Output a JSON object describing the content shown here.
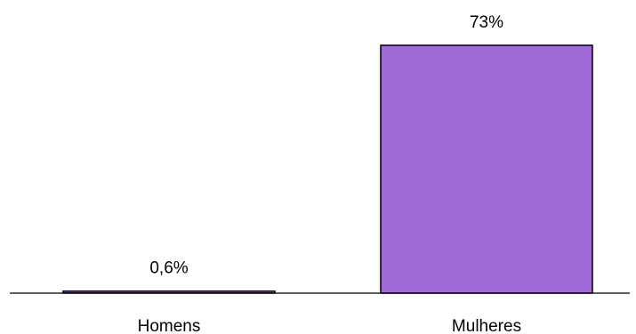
{
  "chart_data": {
    "type": "bar",
    "categories": [
      "Homens",
      "Mulheres"
    ],
    "values": [
      0.6,
      73
    ],
    "value_labels": [
      "0,6%",
      "73%"
    ],
    "bar_colors": [
      "#a06ad9",
      "#a06ad9"
    ],
    "bar_outline_color": "#000000",
    "axis_color": "#000000",
    "ylim": [
      0,
      73
    ],
    "title": "",
    "xlabel": "",
    "ylabel": "",
    "grid": false,
    "legend": false
  }
}
